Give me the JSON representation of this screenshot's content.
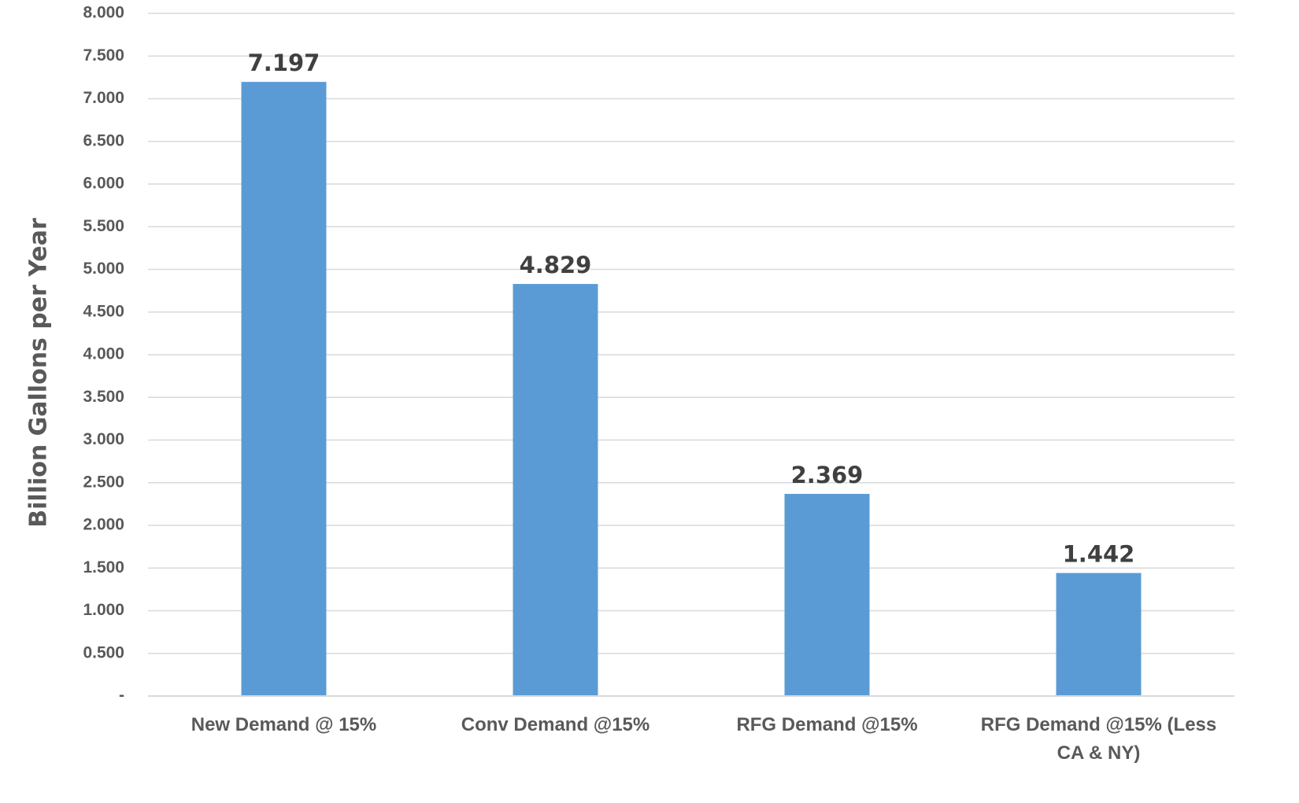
{
  "chart_data": {
    "type": "bar",
    "categories": [
      [
        "New Demand @ 15%"
      ],
      [
        "Conv Demand @15%"
      ],
      [
        "RFG Demand @15%"
      ],
      [
        "RFG Demand @15% (Less",
        "CA & NY)"
      ]
    ],
    "values": [
      7.197,
      4.829,
      2.369,
      1.442
    ],
    "data_labels": [
      "7.197",
      "4.829",
      "2.369",
      "1.442"
    ],
    "ylabel": "Billion Gallons per Year",
    "ylim": [
      0,
      8
    ],
    "yticks": [
      0,
      0.5,
      1,
      1.5,
      2,
      2.5,
      3,
      3.5,
      4,
      4.5,
      5,
      5.5,
      6,
      6.5,
      7,
      7.5,
      8
    ],
    "ytick_labels": [
      "-",
      "0.500",
      "1.000",
      "1.500",
      "2.000",
      "2.500",
      "3.000",
      "3.500",
      "4.000",
      "4.500",
      "5.000",
      "5.500",
      "6.000",
      "6.500",
      "7.000",
      "7.500",
      "8.000"
    ],
    "grid": true,
    "legend": "none",
    "colors": {
      "bar": "#5B9BD5",
      "grid": "#D9D9D9",
      "axis": "#D9D9D9"
    }
  }
}
